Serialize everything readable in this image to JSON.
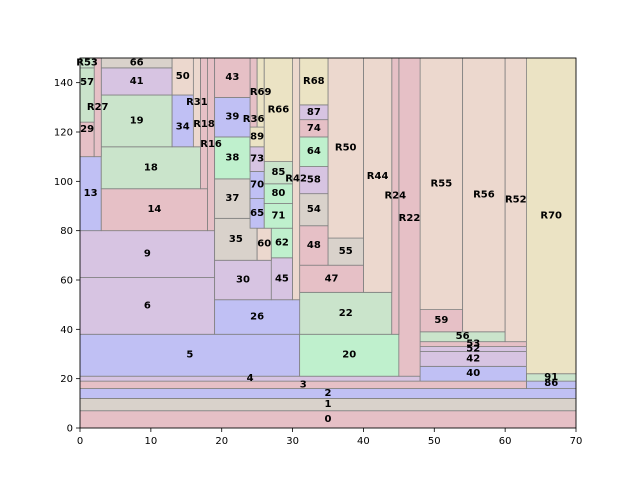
{
  "chart_data": {
    "type": "treemap",
    "xlim": [
      0,
      70
    ],
    "ylim": [
      0,
      150
    ],
    "x_ticks": [
      0,
      10,
      20,
      30,
      40,
      50,
      60,
      70
    ],
    "y_ticks": [
      0,
      20,
      40,
      60,
      80,
      100,
      120,
      140
    ],
    "grid": false,
    "colors": {
      "red": "#e6c0c6",
      "green": "#cae4cb",
      "blue": "#c0c0f4",
      "purple": "#d7c4e2",
      "gray": "#d9d2cb",
      "yellow": "#ebe3c4",
      "mint": "#bff0cd",
      "tan": "#ecd8ce"
    },
    "rects": [
      {
        "label": "0",
        "x0": 0,
        "x1": 70,
        "y0": 0,
        "y1": 7,
        "color": "red"
      },
      {
        "label": "1",
        "x0": 0,
        "x1": 70,
        "y0": 7,
        "y1": 12,
        "color": "gray"
      },
      {
        "label": "2",
        "x0": 0,
        "x1": 70,
        "y0": 12,
        "y1": 16,
        "color": "blue"
      },
      {
        "label": "86",
        "x0": 63,
        "x1": 70,
        "y0": 16,
        "y1": 19,
        "color": "blue"
      },
      {
        "label": "91",
        "x0": 63,
        "x1": 70,
        "y0": 19,
        "y1": 22,
        "color": "green"
      },
      {
        "label": "3",
        "x0": 0,
        "x1": 63,
        "y0": 16,
        "y1": 19,
        "color": "red"
      },
      {
        "label": "4",
        "x0": 0,
        "x1": 48,
        "y0": 19,
        "y1": 21,
        "color": "purple"
      },
      {
        "label": "40",
        "x0": 48,
        "x1": 63,
        "y0": 19,
        "y1": 25,
        "color": "blue"
      },
      {
        "label": "42",
        "x0": 48,
        "x1": 63,
        "y0": 25,
        "y1": 31,
        "color": "purple"
      },
      {
        "label": "52",
        "x0": 48,
        "x1": 63,
        "y0": 31,
        "y1": 33,
        "color": "purple"
      },
      {
        "label": "53",
        "x0": 48,
        "x1": 63,
        "y0": 33,
        "y1": 35,
        "color": "red"
      },
      {
        "label": "56",
        "x0": 48,
        "x1": 60,
        "y0": 35,
        "y1": 39,
        "color": "green"
      },
      {
        "label": "59",
        "x0": 48,
        "x1": 54,
        "y0": 39,
        "y1": 48,
        "color": "red"
      },
      {
        "label": "R55",
        "x0": 48,
        "x1": 54,
        "y0": 48,
        "y1": 150,
        "color": "tan"
      },
      {
        "label": "R56",
        "x0": 54,
        "x1": 60,
        "y0": 39,
        "y1": 150,
        "color": "tan"
      },
      {
        "label": "R52",
        "x0": 60,
        "x1": 63,
        "y0": 35,
        "y1": 150,
        "color": "tan"
      },
      {
        "label": "R70",
        "x0": 63,
        "x1": 70,
        "y0": 22,
        "y1": 150,
        "color": "yellow"
      },
      {
        "label": "5",
        "x0": 0,
        "x1": 31,
        "y0": 21,
        "y1": 38,
        "color": "blue"
      },
      {
        "label": "20",
        "x0": 31,
        "x1": 45,
        "y0": 21,
        "y1": 38,
        "color": "mint"
      },
      {
        "label": "22",
        "x0": 31,
        "x1": 44,
        "y0": 38,
        "y1": 55,
        "color": "green"
      },
      {
        "label": "R22",
        "x0": 45,
        "x1": 48,
        "y0": 21,
        "y1": 150,
        "color": "red"
      },
      {
        "label": "R24",
        "x0": 44,
        "x1": 45,
        "y0": 38,
        "y1": 150,
        "color": "red"
      },
      {
        "label": "R44",
        "x0": 40,
        "x1": 44,
        "y0": 55,
        "y1": 150,
        "color": "tan"
      },
      {
        "label": "47",
        "x0": 31,
        "x1": 40,
        "y0": 55,
        "y1": 66,
        "color": "red"
      },
      {
        "label": "55",
        "x0": 35,
        "x1": 40,
        "y0": 66,
        "y1": 77,
        "color": "gray"
      },
      {
        "label": "R50",
        "x0": 35,
        "x1": 40,
        "y0": 77,
        "y1": 150,
        "color": "tan"
      },
      {
        "label": "48",
        "x0": 31,
        "x1": 35,
        "y0": 66,
        "y1": 82,
        "color": "red"
      },
      {
        "label": "54",
        "x0": 31,
        "x1": 35,
        "y0": 82,
        "y1": 95,
        "color": "gray"
      },
      {
        "label": "58",
        "x0": 31,
        "x1": 35,
        "y0": 95,
        "y1": 106,
        "color": "purple"
      },
      {
        "label": "64",
        "x0": 31,
        "x1": 35,
        "y0": 106,
        "y1": 118,
        "color": "mint"
      },
      {
        "label": "74",
        "x0": 31,
        "x1": 35,
        "y0": 118,
        "y1": 125,
        "color": "red"
      },
      {
        "label": "87",
        "x0": 31,
        "x1": 35,
        "y0": 125,
        "y1": 131,
        "color": "purple"
      },
      {
        "label": "R68",
        "x0": 31,
        "x1": 35,
        "y0": 131,
        "y1": 150,
        "color": "yellow"
      },
      {
        "label": "6",
        "x0": 0,
        "x1": 19,
        "y0": 38,
        "y1": 61,
        "color": "purple"
      },
      {
        "label": "26",
        "x0": 19,
        "x1": 31,
        "y0": 38,
        "y1": 52,
        "color": "blue"
      },
      {
        "label": "9",
        "x0": 0,
        "x1": 19,
        "y0": 61,
        "y1": 80,
        "color": "purple"
      },
      {
        "label": "13",
        "x0": 0,
        "x1": 3,
        "y0": 80,
        "y1": 110,
        "color": "blue"
      },
      {
        "label": "14",
        "x0": 3,
        "x1": 18,
        "y0": 80,
        "y1": 97,
        "color": "red"
      },
      {
        "label": "18",
        "x0": 3,
        "x1": 17,
        "y0": 97,
        "y1": 114,
        "color": "green"
      },
      {
        "label": "19",
        "x0": 3,
        "x1": 13,
        "y0": 114,
        "y1": 135,
        "color": "green"
      },
      {
        "label": "41",
        "x0": 3,
        "x1": 13,
        "y0": 135,
        "y1": 146,
        "color": "purple"
      },
      {
        "label": "66",
        "x0": 3,
        "x1": 13,
        "y0": 146,
        "y1": 150,
        "color": "gray"
      },
      {
        "label": "29",
        "x0": 0,
        "x1": 2,
        "y0": 110,
        "y1": 124,
        "color": "red"
      },
      {
        "label": "R27",
        "x0": 2,
        "x1": 3,
        "y0": 110,
        "y1": 150,
        "color": "red"
      },
      {
        "label": "57",
        "x0": 0,
        "x1": 2,
        "y0": 124,
        "y1": 146,
        "color": "green"
      },
      {
        "label": "R53",
        "x0": 0,
        "x1": 2,
        "y0": 146,
        "y1": 150,
        "color": "green"
      },
      {
        "label": "34",
        "x0": 13,
        "x1": 16,
        "y0": 114,
        "y1": 135,
        "color": "blue"
      },
      {
        "label": "50",
        "x0": 13,
        "x1": 16,
        "y0": 135,
        "y1": 150,
        "color": "tan"
      },
      {
        "label": "R16",
        "x0": 18,
        "x1": 19,
        "y0": 80,
        "y1": 150,
        "color": "red"
      },
      {
        "label": "R18",
        "x0": 17,
        "x1": 18,
        "y0": 97,
        "y1": 150,
        "color": "red"
      },
      {
        "label": "R31",
        "x0": 16,
        "x1": 17,
        "y0": 114,
        "y1": 150,
        "color": "tan"
      },
      {
        "label": "30",
        "x0": 19,
        "x1": 27,
        "y0": 52,
        "y1": 68,
        "color": "purple"
      },
      {
        "label": "45",
        "x0": 27,
        "x1": 30,
        "y0": 52,
        "y1": 69,
        "color": "purple"
      },
      {
        "label": "R42",
        "x0": 30,
        "x1": 31,
        "y0": 52,
        "y1": 150,
        "color": "tan"
      },
      {
        "label": "35",
        "x0": 19,
        "x1": 25,
        "y0": 68,
        "y1": 85,
        "color": "gray"
      },
      {
        "label": "60",
        "x0": 25,
        "x1": 27,
        "y0": 68,
        "y1": 81,
        "color": "tan"
      },
      {
        "label": "62",
        "x0": 27,
        "x1": 30,
        "y0": 69,
        "y1": 81,
        "color": "mint"
      },
      {
        "label": "37",
        "x0": 19,
        "x1": 24,
        "y0": 85,
        "y1": 101,
        "color": "gray"
      },
      {
        "label": "65",
        "x0": 24,
        "x1": 26,
        "y0": 81,
        "y1": 93,
        "color": "blue"
      },
      {
        "label": "71",
        "x0": 26,
        "x1": 30,
        "y0": 81,
        "y1": 91,
        "color": "mint"
      },
      {
        "label": "70",
        "x0": 24,
        "x1": 26,
        "y0": 93,
        "y1": 104,
        "color": "blue"
      },
      {
        "label": "80",
        "x0": 26,
        "x1": 30,
        "y0": 91,
        "y1": 99,
        "color": "mint"
      },
      {
        "label": "85",
        "x0": 26,
        "x1": 30,
        "y0": 99,
        "y1": 108,
        "color": "green"
      },
      {
        "label": "38",
        "x0": 19,
        "x1": 24,
        "y0": 101,
        "y1": 118,
        "color": "mint"
      },
      {
        "label": "73",
        "x0": 24,
        "x1": 26,
        "y0": 104,
        "y1": 114,
        "color": "purple"
      },
      {
        "label": "89",
        "x0": 24,
        "x1": 26,
        "y0": 114,
        "y1": 122,
        "color": "yellow"
      },
      {
        "label": "R36",
        "x0": 24,
        "x1": 25,
        "y0": 122,
        "y1": 150,
        "color": "red"
      },
      {
        "label": "R69",
        "x0": 25,
        "x1": 26,
        "y0": 122,
        "y1": 150,
        "color": "yellow"
      },
      {
        "label": "R66",
        "x0": 26,
        "x1": 30,
        "y0": 108,
        "y1": 150,
        "color": "yellow"
      },
      {
        "label": "39",
        "x0": 19,
        "x1": 24,
        "y0": 118,
        "y1": 134,
        "color": "blue"
      },
      {
        "label": "43",
        "x0": 19,
        "x1": 24,
        "y0": 134,
        "y1": 150,
        "color": "red"
      }
    ],
    "label_positions": {
      "R53": [
        1,
        148
      ],
      "57": [
        1,
        140
      ],
      "29": [
        1,
        121
      ],
      "R27": [
        2.5,
        130
      ],
      "R31": [
        16.5,
        132
      ],
      "34": [
        14.5,
        122
      ],
      "R18": [
        17.5,
        123
      ],
      "R16": [
        18.5,
        115
      ],
      "39": [
        21.5,
        126
      ],
      "R36": [
        24.5,
        125
      ],
      "R69": [
        25.5,
        136
      ],
      "89": [
        25,
        118
      ],
      "R66": [
        28,
        129
      ],
      "73": [
        25,
        109
      ],
      "70": [
        25,
        98.5
      ],
      "65": [
        25,
        87
      ],
      "85": [
        28,
        103.5
      ],
      "80": [
        28,
        95
      ],
      "71": [
        28,
        86
      ],
      "R42": [
        30.5,
        101
      ],
      "R22": [
        46.5,
        85
      ],
      "R24": [
        44.5,
        94
      ],
      "R44": [
        42,
        102
      ],
      "56": [
        54,
        37
      ],
      "52": [
        55.5,
        32
      ],
      "53": [
        55.5,
        34
      ],
      "86": [
        66.5,
        18
      ],
      "91": [
        66.5,
        20.5
      ]
    },
    "xlabel": "",
    "ylabel": "",
    "title": ""
  }
}
